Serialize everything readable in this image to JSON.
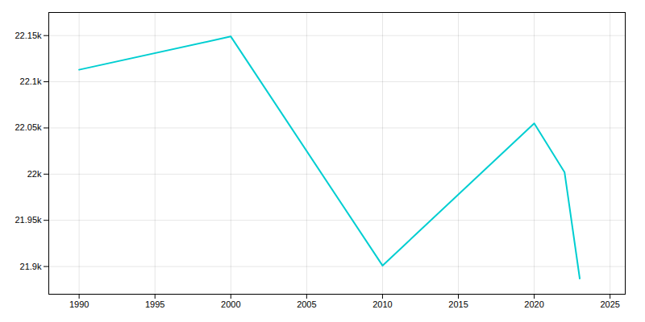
{
  "chart_data": {
    "type": "line",
    "x": [
      1990,
      2000,
      2010,
      2020,
      2022,
      2023
    ],
    "values": [
      22113,
      22149,
      21901,
      22055,
      22002,
      21887
    ],
    "color": "#00CED1",
    "xlim": [
      1988,
      2026
    ],
    "ylim": [
      21870,
      22175
    ],
    "xticks": [
      1990,
      1995,
      2000,
      2005,
      2010,
      2015,
      2020,
      2025
    ],
    "yticks": [
      {
        "value": 21900,
        "label": "21.9k"
      },
      {
        "value": 21950,
        "label": "21.95k"
      },
      {
        "value": 22000,
        "label": "22k"
      },
      {
        "value": 22050,
        "label": "22.05k"
      },
      {
        "value": 22100,
        "label": "22.1k"
      },
      {
        "value": 22150,
        "label": "22.15k"
      }
    ],
    "grid": true
  }
}
